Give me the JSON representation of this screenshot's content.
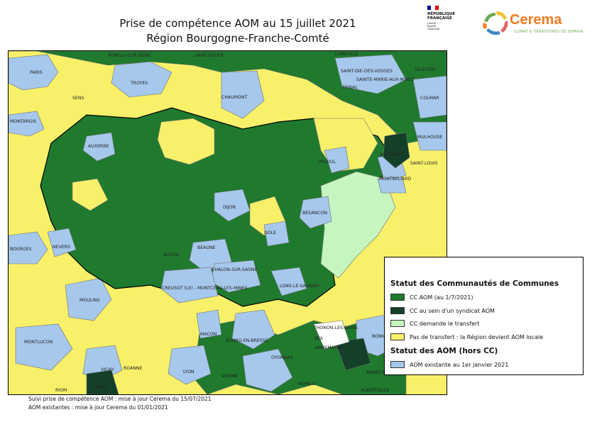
{
  "title": {
    "line1": "Prise de compétence AOM au 15 juillet 2021",
    "line2": "Région Bourgogne-Franche-Comté"
  },
  "logos": {
    "rf": {
      "line1": "RÉPUBLIQUE",
      "line2": "FRANÇAISE",
      "motto": "Liberté Égalité Fraternité"
    },
    "cerema": {
      "name": "Cerema",
      "tagline": "CLIMAT & TERRITOIRES DE DEMAIN"
    }
  },
  "colors": {
    "cc_aom": "#1f7a2e",
    "cc_syndicat": "#14402a",
    "cc_transfert": "#c6f5c0",
    "pas_transfert": "#f9f06a",
    "aom_existante": "#a6c8ec",
    "annecy_white": "#ffffff",
    "border": "#6e6e6e",
    "region_border": "#000000"
  },
  "legend": {
    "title1": "Statut des Communautés de Communes",
    "items1": [
      {
        "label": "CC AOM (au 1/7/2021)",
        "color": "#1f7a2e"
      },
      {
        "label": "CC au sein d'un syndicat AOM",
        "color": "#14402a"
      },
      {
        "label": "CC demande le transfert",
        "color": "#c6f5c0"
      },
      {
        "label": "Pas de transfert : la Région devient AOM locale",
        "color": "#f9f06a"
      }
    ],
    "title2": "Statut des AOM (hors CC)",
    "items2": [
      {
        "label": "AOM existante au 1er janvier 2021",
        "color": "#a6c8ec"
      }
    ]
  },
  "map": {
    "places": [
      "PARIS",
      "ROMILLY-SUR-SEINE",
      "SAINT-DIZIER",
      "LUNEVILLE",
      "SELESTAT",
      "SAINT-DIE-DES-VOSGES",
      "SAINTE-MARIE-AUX-MINES",
      "EPINAL",
      "TROYES",
      "SENS",
      "CHAUMONT",
      "COLMAR",
      "MONTARGIS",
      "MULHOUSE",
      "AUXERRE",
      "BELFORT",
      "SAINT-LOUIS",
      "VESOUL",
      "MONTBELIARD",
      "DIJON",
      "BESANCON",
      "DOLE",
      "BOURGES",
      "NEVERS",
      "AUTUN",
      "BEAUNE",
      "CHALON-SUR-SAONE",
      "CREUSOT (LE) - MONTCEAU-LES-MINES",
      "LONS-LE-SAUNIER",
      "MOULINS",
      "MONTLUCON",
      "MACON",
      "BOURG-EN-BRESSE",
      "THONON-LES-BAINS",
      "GEX",
      "ANNEMASSE",
      "BONNEVILLE",
      "ANNECY",
      "OYONNAX",
      "VICHY",
      "ROANNE",
      "LYON",
      "VIENNE",
      "RIOM",
      "THIERS",
      "ALBERTVILLE",
      "RUMILLY"
    ]
  },
  "footer": {
    "line1": "Suivi prise de compétence AOM : mise à jour Cerema du 15/07/2021",
    "line2": "AOM existantes : mise à jour Cerema du 01/01/2021"
  }
}
